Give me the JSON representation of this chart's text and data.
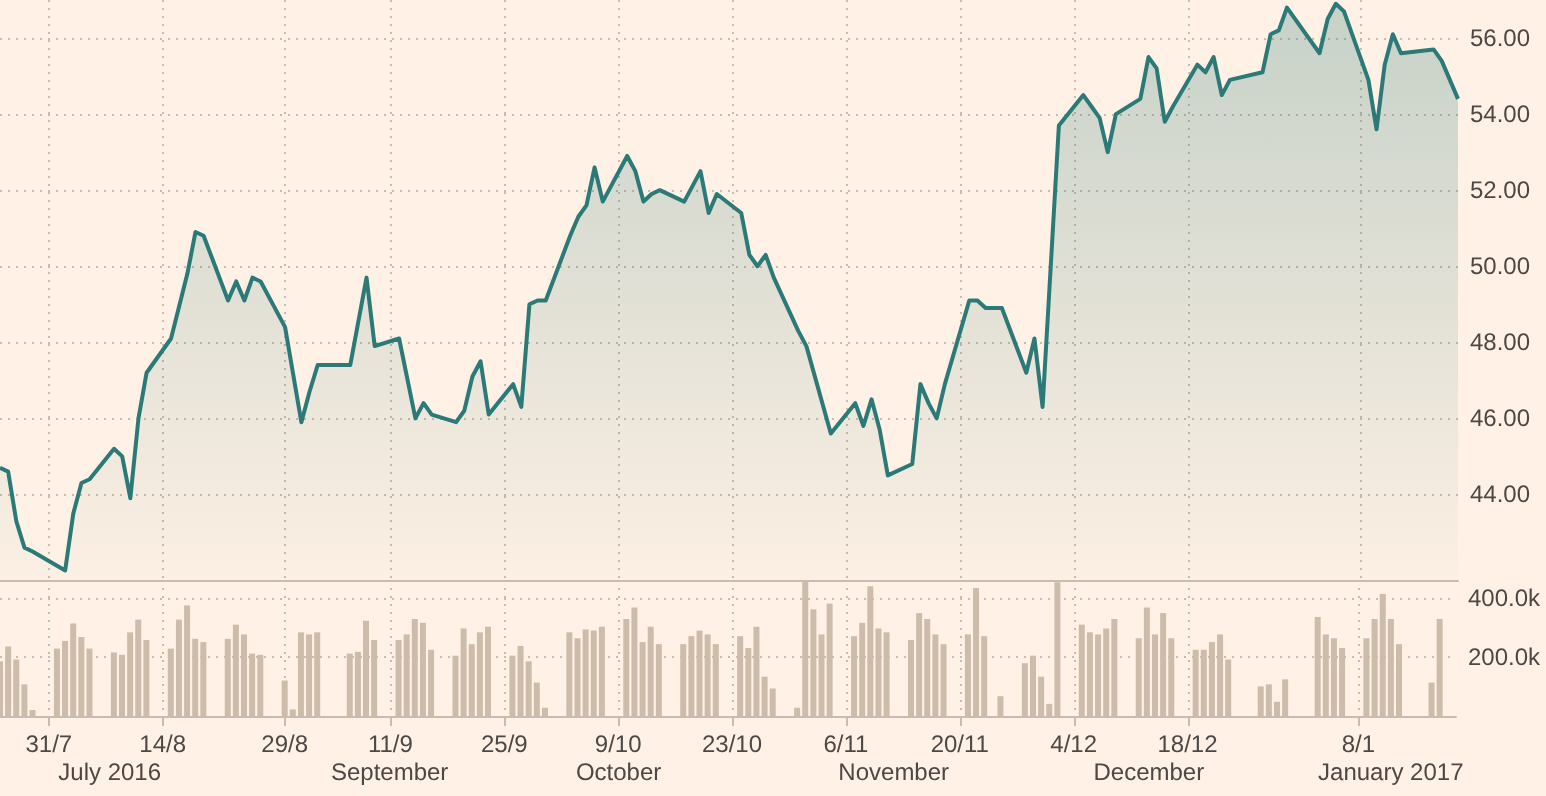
{
  "chart_data": [
    {
      "type": "area",
      "color": "#2b7a78",
      "grid": true,
      "tick_labels": "y",
      "xlim": [
        "2016-07-25",
        "2017-01-20"
      ],
      "xticks": [
        {
          "value": "2016-07-31",
          "label": null
        },
        {
          "value": "2016-08-14",
          "label": null
        },
        {
          "value": "2016-08-29",
          "label": null
        },
        {
          "value": "2016-09-11",
          "label": null
        },
        {
          "value": "2016-09-25",
          "label": null
        },
        {
          "value": "2016-10-09",
          "label": null
        },
        {
          "value": "2016-10-23",
          "label": null
        },
        {
          "value": "2016-11-06",
          "label": null
        },
        {
          "value": "2016-11-20",
          "label": null
        },
        {
          "value": "2016-12-04",
          "label": null
        },
        {
          "value": "2016-12-18",
          "label": null
        },
        {
          "value": "2017-01-08",
          "label": null
        }
      ],
      "ylim": [
        41.75,
        57
      ],
      "yticks": [
        {
          "value": 44,
          "label": "44.00"
        },
        {
          "value": 46,
          "label": "46.00"
        },
        {
          "value": 48,
          "label": "48.00"
        },
        {
          "value": 50,
          "label": "50.00"
        },
        {
          "value": 52,
          "label": "52.00"
        },
        {
          "value": 54,
          "label": "54.00"
        },
        {
          "value": 56,
          "label": "56.00"
        }
      ],
      "x": [
        "2016-07-25",
        "2016-07-26",
        "2016-07-27",
        "2016-07-28",
        "2016-07-29",
        "2016-08-02",
        "2016-08-03",
        "2016-08-04",
        "2016-08-05",
        "2016-08-08",
        "2016-08-09",
        "2016-08-10",
        "2016-08-11",
        "2016-08-12",
        "2016-08-15",
        "2016-08-17",
        "2016-08-18",
        "2016-08-19",
        "2016-08-22",
        "2016-08-23",
        "2016-08-24",
        "2016-08-25",
        "2016-08-26",
        "2016-08-29",
        "2016-08-31",
        "2016-09-01",
        "2016-09-02",
        "2016-09-06",
        "2016-09-08",
        "2016-09-09",
        "2016-09-12",
        "2016-09-14",
        "2016-09-15",
        "2016-09-16",
        "2016-09-19",
        "2016-09-20",
        "2016-09-21",
        "2016-09-22",
        "2016-09-23",
        "2016-09-26",
        "2016-09-27",
        "2016-09-28",
        "2016-09-29",
        "2016-09-30",
        "2016-10-03",
        "2016-10-04",
        "2016-10-05",
        "2016-10-06",
        "2016-10-07",
        "2016-10-10",
        "2016-10-11",
        "2016-10-12",
        "2016-10-13",
        "2016-10-14",
        "2016-10-17",
        "2016-10-18",
        "2016-10-19",
        "2016-10-20",
        "2016-10-21",
        "2016-10-24",
        "2016-10-25",
        "2016-10-26",
        "2016-10-27",
        "2016-10-28",
        "2016-10-31",
        "2016-11-01",
        "2016-11-04",
        "2016-11-07",
        "2016-11-08",
        "2016-11-09",
        "2016-11-10",
        "2016-11-11",
        "2016-11-14",
        "2016-11-15",
        "2016-11-16",
        "2016-11-17",
        "2016-11-18",
        "2016-11-21",
        "2016-11-22",
        "2016-11-23",
        "2016-11-25",
        "2016-11-28",
        "2016-11-29",
        "2016-11-30",
        "2016-12-01",
        "2016-12-02",
        "2016-12-05",
        "2016-12-06",
        "2016-12-07",
        "2016-12-08",
        "2016-12-09",
        "2016-12-12",
        "2016-12-13",
        "2016-12-14",
        "2016-12-15",
        "2016-12-16",
        "2016-12-19",
        "2016-12-20",
        "2016-12-21",
        "2016-12-22",
        "2016-12-23",
        "2016-12-27",
        "2016-12-28",
        "2016-12-29",
        "2016-12-30",
        "2017-01-03",
        "2017-01-04",
        "2017-01-05",
        "2017-01-06",
        "2017-01-09",
        "2017-01-10",
        "2017-01-11",
        "2017-01-12",
        "2017-01-13",
        "2017-01-17",
        "2017-01-18",
        "2017-01-20"
      ],
      "values": [
        44.7,
        44.6,
        43.3,
        42.6,
        42.5,
        42.0,
        43.5,
        44.3,
        44.4,
        45.2,
        45.0,
        43.9,
        46.0,
        47.2,
        48.1,
        49.8,
        50.9,
        50.8,
        49.1,
        49.6,
        49.1,
        49.7,
        49.6,
        48.4,
        45.9,
        46.7,
        47.4,
        47.4,
        49.7,
        47.9,
        48.1,
        46.0,
        46.4,
        46.1,
        45.9,
        46.2,
        47.1,
        47.5,
        46.1,
        46.9,
        46.3,
        49.0,
        49.1,
        49.1,
        50.8,
        51.3,
        51.6,
        52.6,
        51.7,
        52.9,
        52.5,
        51.7,
        51.9,
        52.0,
        51.7,
        52.1,
        52.5,
        51.4,
        51.9,
        51.4,
        50.3,
        50.0,
        50.3,
        49.7,
        48.3,
        47.9,
        45.6,
        46.4,
        45.8,
        46.5,
        45.7,
        44.5,
        44.8,
        46.9,
        46.4,
        46.0,
        46.9,
        49.1,
        49.1,
        48.9,
        48.9,
        47.2,
        48.1,
        46.3,
        50.0,
        53.7,
        54.5,
        54.2,
        53.9,
        53.0,
        54.0,
        54.4,
        55.5,
        55.2,
        53.8,
        54.2,
        55.3,
        55.1,
        55.5,
        54.5,
        54.9,
        55.1,
        56.1,
        56.2,
        56.8,
        55.6,
        56.5,
        56.9,
        56.7,
        54.9,
        53.6,
        55.3,
        56.1,
        55.6,
        55.7,
        55.4,
        54.4
      ]
    },
    {
      "type": "bar",
      "color": "#cdbcaa",
      "grid": true,
      "xlim": [
        "2016-07-25",
        "2017-01-20"
      ],
      "xticks": [
        {
          "value": "2016-07-31",
          "label": "31/7"
        },
        {
          "value": "2016-08-14",
          "label": "14/8"
        },
        {
          "value": "2016-08-29",
          "label": "29/8"
        },
        {
          "value": "2016-09-11",
          "label": "11/9"
        },
        {
          "value": "2016-09-25",
          "label": "25/9"
        },
        {
          "value": "2016-10-09",
          "label": "9/10"
        },
        {
          "value": "2016-10-23",
          "label": "23/10"
        },
        {
          "value": "2016-11-06",
          "label": "6/11"
        },
        {
          "value": "2016-11-20",
          "label": "20/11"
        },
        {
          "value": "2016-12-04",
          "label": "4/12"
        },
        {
          "value": "2016-12-18",
          "label": "18/12"
        },
        {
          "value": "2017-01-08",
          "label": "8/1"
        }
      ],
      "annotations": [
        "July 2016",
        "September",
        "October",
        "November",
        "December",
        "January 2017"
      ],
      "ylim": [
        0,
        460000
      ],
      "yticks": [
        {
          "value": 200000,
          "label": "200.0k"
        },
        {
          "value": 400000,
          "label": "400.0k"
        }
      ],
      "x": [
        "2016-07-25",
        "2016-07-26",
        "2016-07-27",
        "2016-07-28",
        "2016-07-29",
        "2016-08-01",
        "2016-08-02",
        "2016-08-03",
        "2016-08-04",
        "2016-08-05",
        "2016-08-08",
        "2016-08-09",
        "2016-08-10",
        "2016-08-11",
        "2016-08-12",
        "2016-08-15",
        "2016-08-16",
        "2016-08-17",
        "2016-08-18",
        "2016-08-19",
        "2016-08-22",
        "2016-08-23",
        "2016-08-24",
        "2016-08-25",
        "2016-08-26",
        "2016-08-29",
        "2016-08-30",
        "2016-08-31",
        "2016-09-01",
        "2016-09-02",
        "2016-09-06",
        "2016-09-07",
        "2016-09-08",
        "2016-09-09",
        "2016-09-12",
        "2016-09-13",
        "2016-09-14",
        "2016-09-15",
        "2016-09-16",
        "2016-09-19",
        "2016-09-20",
        "2016-09-21",
        "2016-09-22",
        "2016-09-23",
        "2016-09-26",
        "2016-09-27",
        "2016-09-28",
        "2016-09-29",
        "2016-09-30",
        "2016-10-03",
        "2016-10-04",
        "2016-10-05",
        "2016-10-06",
        "2016-10-07",
        "2016-10-10",
        "2016-10-11",
        "2016-10-12",
        "2016-10-13",
        "2016-10-14",
        "2016-10-17",
        "2016-10-18",
        "2016-10-19",
        "2016-10-20",
        "2016-10-21",
        "2016-10-24",
        "2016-10-25",
        "2016-10-26",
        "2016-10-27",
        "2016-10-28",
        "2016-10-31",
        "2016-11-01",
        "2016-11-02",
        "2016-11-03",
        "2016-11-04",
        "2016-11-07",
        "2016-11-08",
        "2016-11-09",
        "2016-11-10",
        "2016-11-11",
        "2016-11-14",
        "2016-11-15",
        "2016-11-16",
        "2016-11-17",
        "2016-11-18",
        "2016-11-21",
        "2016-11-22",
        "2016-11-23",
        "2016-11-25",
        "2016-11-28",
        "2016-11-29",
        "2016-11-30",
        "2016-12-01",
        "2016-12-02",
        "2016-12-05",
        "2016-12-06",
        "2016-12-07",
        "2016-12-08",
        "2016-12-09",
        "2016-12-12",
        "2016-12-13",
        "2016-12-14",
        "2016-12-15",
        "2016-12-16",
        "2016-12-19",
        "2016-12-20",
        "2016-12-21",
        "2016-12-22",
        "2016-12-23",
        "2016-12-27",
        "2016-12-28",
        "2016-12-29",
        "2016-12-30",
        "2017-01-03",
        "2017-01-04",
        "2017-01-05",
        "2017-01-06",
        "2017-01-09",
        "2017-01-10",
        "2017-01-11",
        "2017-01-12",
        "2017-01-13",
        "2017-01-17",
        "2017-01-18"
      ],
      "values": [
        185000,
        235000,
        191000,
        107000,
        20000,
        228000,
        254000,
        313000,
        267000,
        228000,
        215000,
        207000,
        283000,
        326000,
        257000,
        228000,
        326000,
        374000,
        261000,
        250000,
        261000,
        309000,
        276000,
        211000,
        207000,
        120000,
        22000,
        283000,
        276000,
        283000,
        211000,
        217000,
        322000,
        257000,
        257000,
        276000,
        328000,
        315000,
        224000,
        204000,
        296000,
        243000,
        283000,
        302000,
        204000,
        237000,
        185000,
        113000,
        28000,
        283000,
        263000,
        293000,
        289000,
        302000,
        328000,
        367000,
        250000,
        302000,
        243000,
        243000,
        270000,
        289000,
        276000,
        243000,
        270000,
        230000,
        302000,
        133000,
        93000,
        28000,
        459000,
        361000,
        276000,
        380000,
        270000,
        315000,
        439000,
        296000,
        283000,
        257000,
        348000,
        328000,
        276000,
        243000,
        276000,
        433000,
        270000,
        67000,
        178000,
        204000,
        133000,
        41000,
        452000,
        309000,
        283000,
        276000,
        296000,
        328000,
        263000,
        367000,
        276000,
        348000,
        263000,
        224000,
        224000,
        250000,
        276000,
        191000,
        100000,
        107000,
        48000,
        124000,
        335000,
        276000,
        263000,
        230000,
        263000,
        328000,
        413000,
        328000,
        243000,
        113000,
        328000
      ]
    }
  ]
}
